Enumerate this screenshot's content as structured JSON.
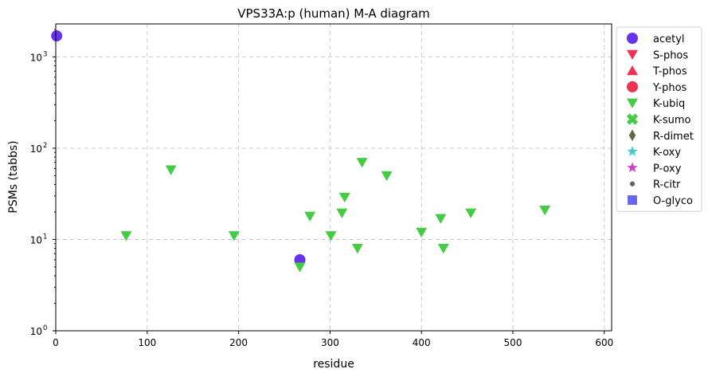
{
  "chart_data": {
    "type": "scatter",
    "title": "VPS33A:p (human) M-A diagram",
    "xlabel": "residue",
    "ylabel": "PSMs (tabbs)",
    "xlim": [
      0,
      608
    ],
    "ylim": [
      1,
      2300
    ],
    "yscale": "log",
    "x_ticks": [
      0,
      100,
      200,
      300,
      400,
      500,
      600
    ],
    "y_ticks": [
      {
        "value": 1,
        "label": "10",
        "exp": "0"
      },
      {
        "value": 10,
        "label": "10",
        "exp": "1"
      },
      {
        "value": 100,
        "label": "10",
        "exp": "2"
      },
      {
        "value": 1000,
        "label": "10",
        "exp": "3"
      }
    ],
    "grid": true,
    "legend_position": "outside-right",
    "series": [
      {
        "name": "acetyl",
        "marker": "circle",
        "color": "#6633ee",
        "points": [
          {
            "x": 1,
            "y": 1700
          },
          {
            "x": 267,
            "y": 6
          }
        ]
      },
      {
        "name": "S-phos",
        "marker": "triangle-down",
        "color": "#ee3355",
        "points": []
      },
      {
        "name": "T-phos",
        "marker": "triangle-up",
        "color": "#ee3355",
        "points": []
      },
      {
        "name": "Y-phos",
        "marker": "circle",
        "color": "#ee3355",
        "points": []
      },
      {
        "name": "K-ubiq",
        "marker": "triangle-down",
        "color": "#44cc44",
        "points": [
          {
            "x": 77,
            "y": 11
          },
          {
            "x": 126,
            "y": 58
          },
          {
            "x": 195,
            "y": 11
          },
          {
            "x": 267,
            "y": 5
          },
          {
            "x": 278,
            "y": 18
          },
          {
            "x": 301,
            "y": 11
          },
          {
            "x": 313,
            "y": 19.5
          },
          {
            "x": 316,
            "y": 29
          },
          {
            "x": 330,
            "y": 8
          },
          {
            "x": 335,
            "y": 70
          },
          {
            "x": 362,
            "y": 50
          },
          {
            "x": 400,
            "y": 12
          },
          {
            "x": 421,
            "y": 17
          },
          {
            "x": 424,
            "y": 8
          },
          {
            "x": 454,
            "y": 19.5
          },
          {
            "x": 535,
            "y": 21
          }
        ]
      },
      {
        "name": "K-sumo",
        "marker": "x",
        "color": "#44cc44",
        "points": []
      },
      {
        "name": "R-dimet",
        "marker": "diamond",
        "color": "#666644",
        "points": []
      },
      {
        "name": "K-oxy",
        "marker": "star",
        "color": "#44cccc",
        "points": []
      },
      {
        "name": "P-oxy",
        "marker": "star",
        "color": "#cc44cc",
        "points": []
      },
      {
        "name": "R-citr",
        "marker": "dot",
        "color": "#666666",
        "points": []
      },
      {
        "name": "O-glyco",
        "marker": "square",
        "color": "#6666ee",
        "points": []
      }
    ]
  }
}
